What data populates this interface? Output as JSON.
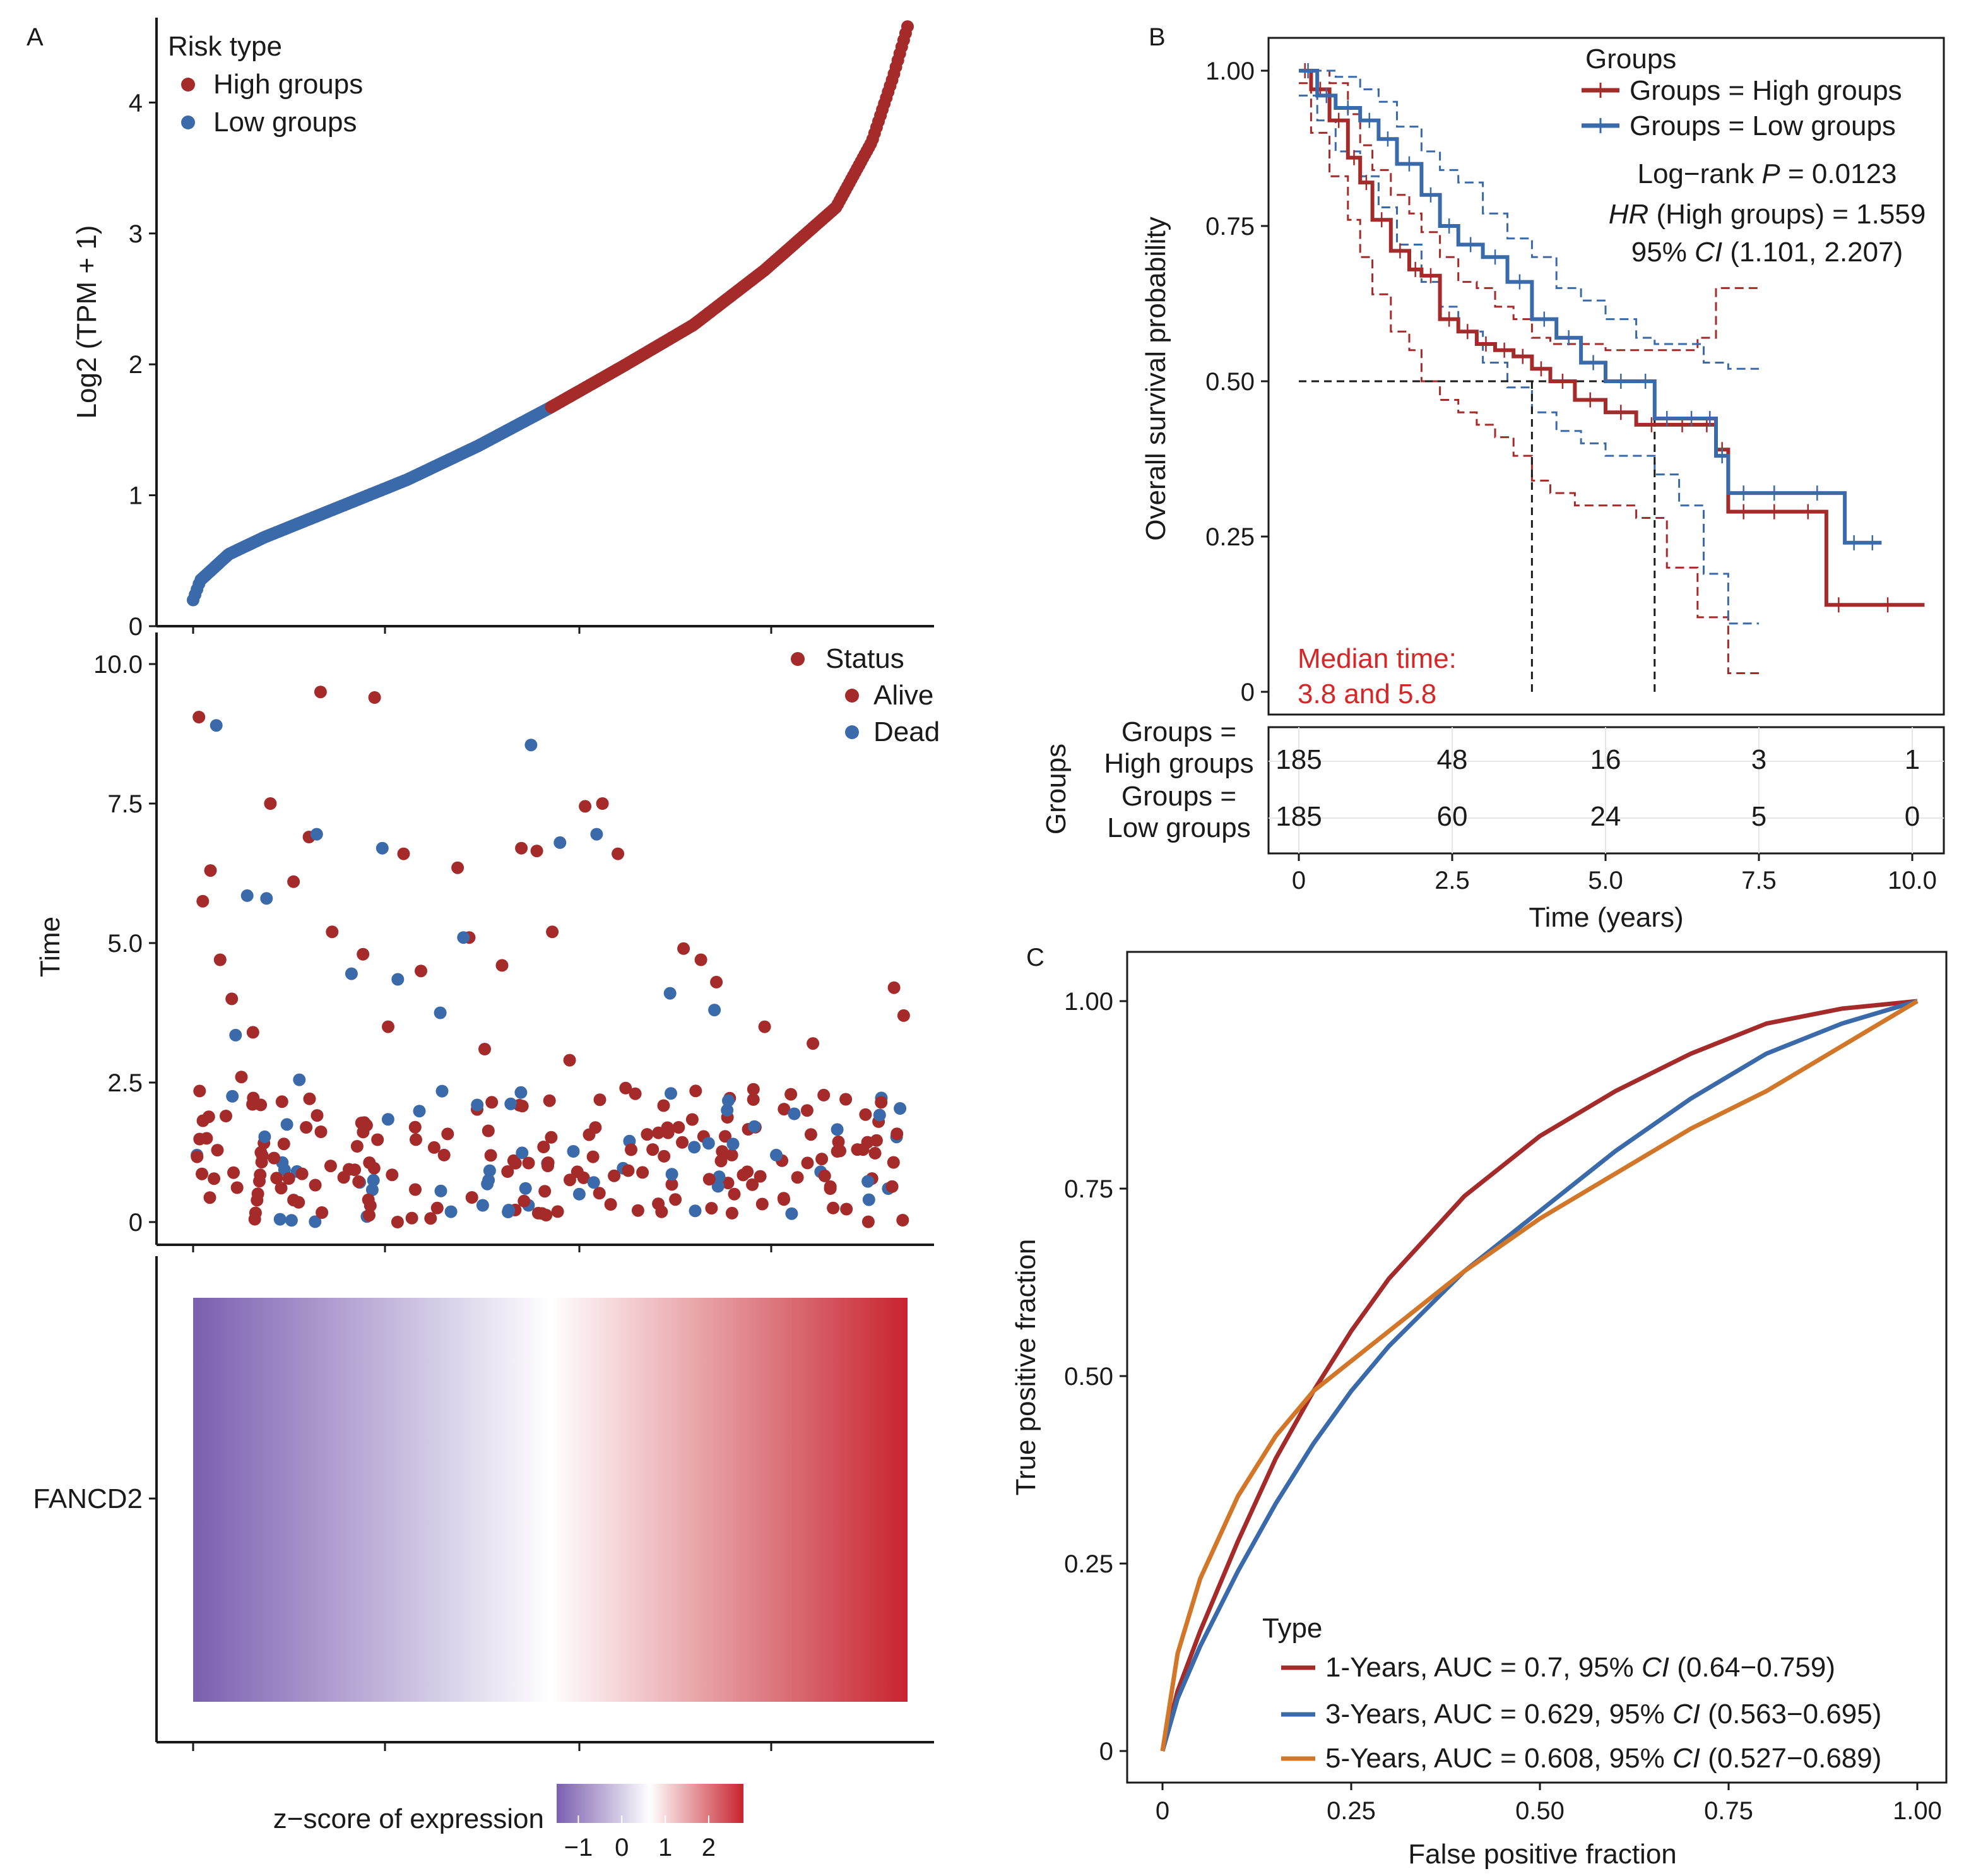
{
  "colors": {
    "high": "#a52a2a",
    "low": "#3a6aaa",
    "five": "#d2772a",
    "median_text": "#d62728",
    "heat_low": "#7b5fb0",
    "heat_mid": "#ffffff",
    "heat_high": "#c8242f"
  },
  "panelA": {
    "label": "A",
    "top": {
      "ylabel": "Log2 (TPM + 1)",
      "yticks": [
        "0",
        "1",
        "2",
        "3",
        "4"
      ],
      "legend_title": "Risk type",
      "legend_high": "High groups",
      "legend_low": "Low groups"
    },
    "middle": {
      "ylabel": "Time",
      "yticks": [
        "0",
        "2.5",
        "5.0",
        "7.5",
        "10.0"
      ],
      "legend_title": "Status",
      "legend_alive": "Alive",
      "legend_dead": "Dead"
    },
    "heatmap": {
      "row_label": "FANCD2",
      "colorbar_title": "z−score of expression",
      "colorbar_ticks": [
        "−1",
        "0",
        "1",
        "2"
      ]
    }
  },
  "panelB": {
    "label": "B",
    "ylabel": "Overall survival probability",
    "xlabel": "Time (years)",
    "yticks": [
      "0",
      "0.25",
      "0.50",
      "0.75",
      "1.00"
    ],
    "xticks": [
      "0",
      "2.5",
      "5.0",
      "7.5",
      "10.0"
    ],
    "legend_title": "Groups",
    "legend_high": "Groups = High groups",
    "legend_low": "Groups = Low groups",
    "stat_logrank_prefix": "Log−rank ",
    "stat_logrank_p": "P",
    "stat_logrank_value": " = 0.0123",
    "stat_hr_prefix": "HR",
    "stat_hr_value": " (High groups) = 1.559",
    "stat_ci_prefix": "95% ",
    "stat_ci_italic": "CI",
    "stat_ci_value": " (1.101, 2.207)",
    "median_line1": "Median time:",
    "median_line2": "3.8 and 5.8",
    "risk_table": {
      "ylabel": "Groups",
      "high_label_line1": "Groups =",
      "high_label_line2": "High groups",
      "low_label_line1": "Groups =",
      "low_label_line2": "Low groups",
      "high_counts": [
        "185",
        "48",
        "16",
        "3",
        "1"
      ],
      "low_counts": [
        "185",
        "60",
        "24",
        "5",
        "0"
      ]
    }
  },
  "panelC": {
    "label": "C",
    "ylabel": "True positive fraction",
    "xlabel": "False positive fraction",
    "yticks": [
      "0",
      "0.25",
      "0.50",
      "0.75",
      "1.00"
    ],
    "xticks": [
      "0",
      "0.25",
      "0.50",
      "0.75",
      "1.00"
    ],
    "legend_title": "Type",
    "legend_1_prefix": "1-Years, AUC = 0.7, 95% ",
    "legend_1_suffix": " (0.64−0.759)",
    "legend_3_prefix": "3-Years, AUC = 0.629, 95% ",
    "legend_3_suffix": " (0.563−0.695)",
    "legend_5_prefix": "5-Years, AUC = 0.608, 95% ",
    "legend_5_suffix": " (0.527−0.689)",
    "legend_ci_italic": "CI"
  },
  "chart_data": [
    {
      "type": "scatter",
      "panel": "A-top",
      "ylabel": "Log2 (TPM + 1)",
      "ylim": [
        0,
        4.6
      ],
      "n_points": 370,
      "series": [
        {
          "name": "Low groups",
          "rank_range": [
            1,
            185
          ],
          "y_range": [
            0.2,
            1.67
          ]
        },
        {
          "name": "High groups",
          "rank_range": [
            186,
            370
          ],
          "y_range": [
            1.68,
            4.58
          ]
        }
      ],
      "quantile_profile": {
        "rank_fraction": [
          0.0,
          0.01,
          0.05,
          0.1,
          0.2,
          0.3,
          0.4,
          0.5,
          0.6,
          0.7,
          0.8,
          0.9,
          0.95,
          0.98,
          1.0
        ],
        "value": [
          0.2,
          0.35,
          0.55,
          0.68,
          0.9,
          1.12,
          1.38,
          1.67,
          1.98,
          2.3,
          2.72,
          3.2,
          3.7,
          4.2,
          4.58
        ]
      }
    },
    {
      "type": "scatter",
      "panel": "A-middle",
      "ylabel": "Time",
      "ylim": [
        0,
        10
      ],
      "series": [
        {
          "name": "Alive",
          "x": [
            3,
            5,
            9,
            14,
            20,
            25,
            31,
            40,
            52,
            60,
            66,
            72,
            88,
            94,
            101,
            109,
            118,
            130,
            137,
            143,
            151,
            160,
            170,
            178,
            186,
            195,
            203,
            212,
            220,
            229,
            238,
            246,
            254,
            263,
            271,
            279,
            287,
            296,
            305,
            313,
            321,
            330,
            338,
            347,
            355,
            363,
            368,
            7,
            17,
            35,
            47,
            78,
            115,
            166,
            199,
            224,
            241,
            277,
            318,
            344
          ],
          "y": [
            9.05,
            5.75,
            6.3,
            4.7,
            4.0,
            2.6,
            3.4,
            7.5,
            6.1,
            6.9,
            9.5,
            5.2,
            4.8,
            9.4,
            3.5,
            6.6,
            4.5,
            1.2,
            6.35,
            5.1,
            3.1,
            4.6,
            6.7,
            6.65,
            5.2,
            2.9,
            7.45,
            7.5,
            6.6,
            2.3,
            1.3,
            1.6,
            4.9,
            4.7,
            4.3,
            1.2,
            0.9,
            3.5,
            1.1,
            0.8,
            3.2,
            0.6,
            2.2,
            1.3,
            1.8,
            4.2,
            3.7,
            1.5,
            1.9,
            2.1,
            1.4,
            0.8,
            1.7,
            1.1,
            0.9,
            2.4,
            1.6,
            0.7,
            2.0,
            1.3
          ]
        },
        {
          "name": "Dead",
          "x": [
            2,
            12,
            22,
            28,
            38,
            55,
            64,
            82,
            98,
            106,
            128,
            140,
            175,
            190,
            209,
            226,
            247,
            270,
            302,
            325,
            350,
            360,
            45,
            90,
            150,
            200,
            260,
            310
          ],
          "y": [
            1.2,
            8.9,
            3.35,
            5.85,
            5.8,
            2.55,
            6.95,
            4.45,
            6.7,
            4.35,
            3.75,
            5.1,
            8.55,
            6.8,
            6.95,
            1.45,
            4.1,
            3.8,
            1.2,
            0.9,
            0.4,
            0.6,
            0.05,
            0.1,
            0.3,
            0.5,
            0.2,
            0.15
          ]
        }
      ]
    },
    {
      "type": "heatmap",
      "panel": "A-bottom",
      "row": "FANCD2",
      "color_scale": "z-score of expression",
      "z_range": [
        -1.5,
        2.8
      ]
    },
    {
      "type": "line",
      "panel": "B",
      "xlabel": "Time (years)",
      "ylabel": "Overall survival probability",
      "xlim": [
        0,
        10
      ],
      "ylim": [
        0,
        1
      ],
      "series": [
        {
          "name": "Groups = High groups",
          "x": [
            0,
            0.2,
            0.5,
            0.8,
            1.0,
            1.2,
            1.5,
            1.8,
            2.0,
            2.3,
            2.6,
            2.9,
            3.2,
            3.5,
            3.8,
            4.1,
            4.5,
            5.0,
            5.5,
            6.0,
            6.5,
            6.8,
            7.0,
            7.5,
            8.0,
            8.6,
            9.0,
            10.2
          ],
          "y": [
            1.0,
            0.97,
            0.92,
            0.86,
            0.82,
            0.76,
            0.71,
            0.68,
            0.67,
            0.6,
            0.58,
            0.56,
            0.55,
            0.54,
            0.52,
            0.5,
            0.47,
            0.45,
            0.43,
            0.43,
            0.43,
            0.39,
            0.29,
            0.29,
            0.29,
            0.14,
            0.14,
            0.14
          ]
        },
        {
          "name": "Groups = Low groups",
          "x": [
            0,
            0.3,
            0.6,
            1.0,
            1.3,
            1.6,
            2.0,
            2.3,
            2.6,
            3.0,
            3.4,
            3.8,
            4.2,
            4.6,
            5.0,
            5.5,
            5.8,
            6.2,
            6.6,
            6.8,
            7.0,
            7.5,
            8.0,
            8.9,
            9.2,
            9.5
          ],
          "y": [
            1.0,
            0.96,
            0.94,
            0.92,
            0.89,
            0.85,
            0.8,
            0.75,
            0.72,
            0.7,
            0.66,
            0.6,
            0.57,
            0.53,
            0.5,
            0.5,
            0.44,
            0.44,
            0.44,
            0.38,
            0.32,
            0.32,
            0.32,
            0.24,
            0.24,
            0.24
          ]
        }
      ],
      "ci_bands": [
        {
          "series": "Groups = High groups",
          "lower": [
            0.98,
            0.9,
            0.83,
            0.76,
            0.7,
            0.64,
            0.58,
            0.55,
            0.5,
            0.47,
            0.45,
            0.43,
            0.41,
            0.38,
            0.34,
            0.32,
            0.3,
            0.3,
            0.28,
            0.2,
            0.12,
            0.12,
            0.03,
            0.03
          ],
          "upper": [
            1.0,
            1.0,
            0.98,
            0.93,
            0.88,
            0.84,
            0.8,
            0.77,
            0.74,
            0.7,
            0.66,
            0.65,
            0.62,
            0.6,
            0.57,
            0.56,
            0.56,
            0.55,
            0.55,
            0.55,
            0.57,
            0.65,
            0.65,
            0.65
          ]
        },
        {
          "series": "Groups = Low groups",
          "lower": [
            0.96,
            0.92,
            0.87,
            0.83,
            0.78,
            0.72,
            0.66,
            0.62,
            0.58,
            0.53,
            0.49,
            0.45,
            0.42,
            0.4,
            0.38,
            0.38,
            0.35,
            0.3,
            0.19,
            0.19,
            0.11,
            0.11
          ],
          "upper": [
            1.0,
            1.0,
            0.99,
            0.97,
            0.95,
            0.91,
            0.87,
            0.84,
            0.82,
            0.77,
            0.73,
            0.7,
            0.65,
            0.63,
            0.6,
            0.57,
            0.56,
            0.56,
            0.53,
            0.53,
            0.52,
            0.52
          ]
        }
      ],
      "median_x": [
        3.8,
        5.8
      ],
      "risk_table_times": [
        0,
        2.5,
        5.0,
        7.5,
        10.0
      ],
      "risk_table_high": [
        185,
        48,
        16,
        3,
        1
      ],
      "risk_table_low": [
        185,
        60,
        24,
        5,
        0
      ]
    },
    {
      "type": "line",
      "panel": "C",
      "xlabel": "False positive fraction",
      "ylabel": "True positive fraction",
      "xlim": [
        0,
        1
      ],
      "ylim": [
        0,
        1
      ],
      "series": [
        {
          "name": "1-Years, AUC = 0.7, 95% CI (0.64−0.759)",
          "x": [
            0,
            0.02,
            0.05,
            0.1,
            0.15,
            0.2,
            0.25,
            0.3,
            0.4,
            0.5,
            0.6,
            0.7,
            0.8,
            0.9,
            1.0
          ],
          "y": [
            0,
            0.08,
            0.16,
            0.28,
            0.39,
            0.48,
            0.56,
            0.63,
            0.74,
            0.82,
            0.88,
            0.93,
            0.97,
            0.99,
            1.0
          ]
        },
        {
          "name": "3-Years, AUC = 0.629, 95% CI (0.563−0.695)",
          "x": [
            0,
            0.02,
            0.05,
            0.1,
            0.15,
            0.2,
            0.25,
            0.3,
            0.4,
            0.5,
            0.6,
            0.7,
            0.8,
            0.9,
            1.0
          ],
          "y": [
            0,
            0.07,
            0.14,
            0.24,
            0.33,
            0.41,
            0.48,
            0.54,
            0.64,
            0.72,
            0.8,
            0.87,
            0.93,
            0.97,
            1.0
          ]
        },
        {
          "name": "5-Years, AUC = 0.608, 95% CI (0.527−0.689)",
          "x": [
            0,
            0.02,
            0.05,
            0.1,
            0.15,
            0.2,
            0.25,
            0.3,
            0.4,
            0.5,
            0.6,
            0.7,
            0.8,
            0.9,
            1.0
          ],
          "y": [
            0,
            0.13,
            0.23,
            0.34,
            0.42,
            0.48,
            0.52,
            0.56,
            0.64,
            0.71,
            0.77,
            0.83,
            0.88,
            0.94,
            1.0
          ]
        }
      ]
    }
  ]
}
